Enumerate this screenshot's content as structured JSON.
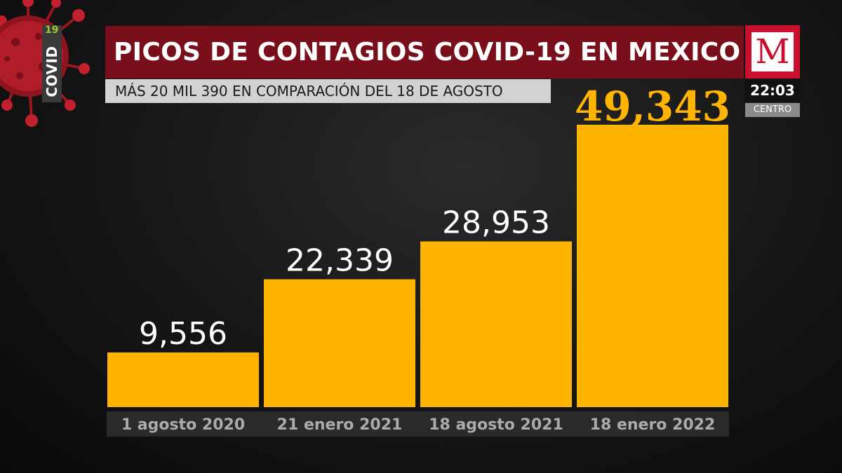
{
  "header": {
    "covid_word": "COVID",
    "covid_num": "19",
    "title": "PICOS DE CONTAGIOS COVID-19 EN MEXICO",
    "subtitle": "MÁS 20 MIL 390 EN COMPARACIÓN DEL 18 DE AGOSTO"
  },
  "broadcast": {
    "logo_letter": "M",
    "time": "22:03",
    "timezone": "CENTRO"
  },
  "colors": {
    "bar": "#ffb400",
    "title_bg": "#7a0f1c",
    "logo_bg": "#c8102e"
  },
  "chart_data": {
    "type": "bar",
    "title": "PICOS DE CONTAGIOS COVID-19 EN MEXICO",
    "categories": [
      "1 agosto 2020",
      "21 enero 2021",
      "18 agosto 2021",
      "18 enero 2022"
    ],
    "values": [
      9556,
      22339,
      28953,
      49343
    ],
    "labels": [
      "9,556",
      "22,339",
      "28,953",
      "49,343"
    ],
    "highlight_index": 3,
    "xlabel": "",
    "ylabel": "",
    "ylim": [
      0,
      49343
    ],
    "grid": false
  }
}
